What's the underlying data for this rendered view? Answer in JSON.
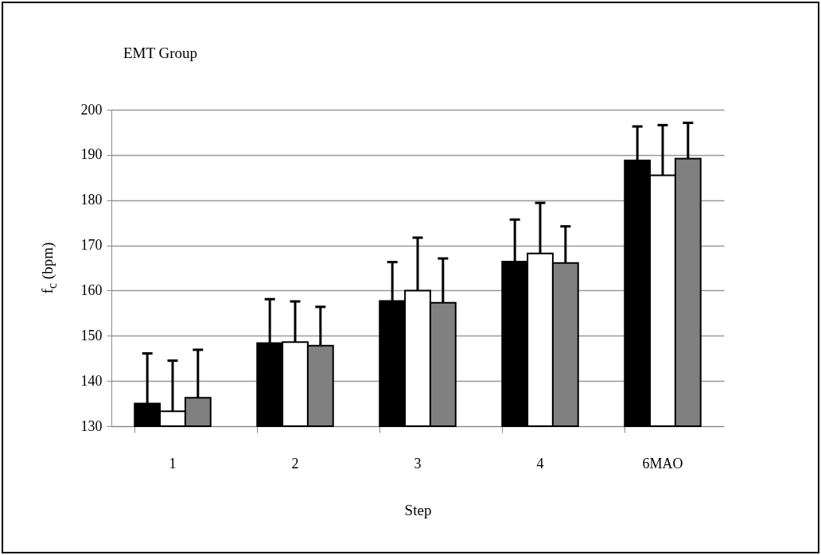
{
  "chart_data": {
    "type": "bar",
    "title": "EMT Group",
    "xlabel": "Step",
    "ylabel": "f$_{c}$ (bpm)",
    "categories": [
      "1",
      "2",
      "3",
      "4",
      "6MAO"
    ],
    "series": [
      {
        "color": "#000000",
        "values": [
          135,
          148.4,
          157.7,
          166.4,
          188.8
        ],
        "errors": [
          [
            135,
            146.1
          ],
          [
            148.4,
            158.1
          ],
          [
            157.7,
            166.3
          ],
          [
            166.4,
            175.7
          ],
          [
            188.8,
            196.3
          ]
        ]
      },
      {
        "color": "#ffffff",
        "values": [
          133.3,
          148.6,
          160,
          168.2,
          185.5
        ],
        "errors": [
          [
            133.3,
            144.5
          ],
          [
            148.6,
            157.6
          ],
          [
            160,
            171.7
          ],
          [
            168.2,
            179.4
          ],
          [
            185.5,
            196.6
          ]
        ]
      },
      {
        "color": "#808080",
        "values": [
          136.3,
          147.8,
          157.3,
          166.1,
          189.2
        ],
        "errors": [
          [
            136.3,
            146.9
          ],
          [
            147.8,
            156.4
          ],
          [
            157.3,
            167.1
          ],
          [
            166.1,
            174.2
          ],
          [
            189.2,
            197.1
          ]
        ]
      }
    ],
    "ylim": [
      130,
      200
    ],
    "yticks": [
      130,
      140,
      150,
      160,
      170,
      180,
      190,
      200
    ],
    "grid": "y",
    "legend": false
  }
}
